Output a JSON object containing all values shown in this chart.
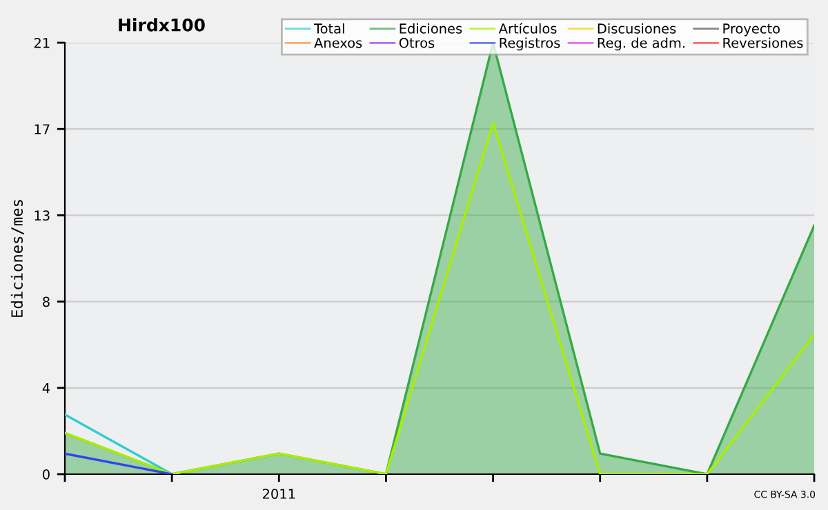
{
  "chart_data": {
    "type": "area",
    "title": "Hirdx100",
    "ylabel": "Ediciones/mes",
    "categories": [
      null,
      null,
      "2011",
      null,
      null,
      null,
      null,
      null
    ],
    "series": [
      {
        "name": "Total",
        "type": "line",
        "color": "#33cccc",
        "values": [
          2.9,
          0,
          null,
          null,
          null,
          null,
          null,
          null
        ]
      },
      {
        "name": "Ediciones",
        "color": "#33aa44",
        "values": [
          2,
          0,
          1,
          0,
          21,
          1,
          0,
          12.1
        ]
      },
      {
        "name": "Artículos",
        "type": "line",
        "color": "#aaee00",
        "values": [
          2,
          0,
          1,
          0,
          17.1,
          0,
          0,
          6.8
        ]
      },
      {
        "name": "Discusiones",
        "type": "line",
        "color": "#ffcc00",
        "values": [
          null,
          null,
          null,
          null,
          null,
          null,
          null,
          null
        ]
      },
      {
        "name": "Proyecto",
        "type": "line",
        "color": "#555555",
        "values": [
          null,
          null,
          null,
          null,
          null,
          null,
          null,
          null
        ]
      },
      {
        "name": "Anexos",
        "type": "line",
        "color": "#ff8833",
        "values": [
          null,
          null,
          null,
          null,
          null,
          null,
          null,
          null
        ]
      },
      {
        "name": "Otros",
        "type": "line",
        "color": "#8833ee",
        "values": [
          null,
          null,
          null,
          null,
          null,
          null,
          null,
          null
        ]
      },
      {
        "name": "Registros",
        "type": "line",
        "color": "#3344ee",
        "values": [
          1,
          0,
          null,
          null,
          null,
          null,
          null,
          null
        ]
      },
      {
        "name": "Reg. de adm.",
        "type": "line",
        "color": "#dd33dd",
        "values": [
          null,
          null,
          null,
          null,
          null,
          null,
          null,
          null
        ]
      },
      {
        "name": "Reversiones",
        "type": "line",
        "color": "#ff3333",
        "values": [
          null,
          null,
          null,
          null,
          null,
          null,
          null,
          null
        ]
      }
    ],
    "ylim": [
      0,
      21
    ],
    "yticks": [
      0,
      {
        "value": 4.2,
        "label": "4"
      },
      {
        "value": 8.4,
        "label": "8"
      },
      {
        "value": 12.6,
        "label": "13"
      },
      {
        "value": 16.8,
        "label": "17"
      },
      21
    ],
    "grid": "y",
    "legend": "top right",
    "annotations": [
      "CC BY-SA 3.0"
    ]
  }
}
